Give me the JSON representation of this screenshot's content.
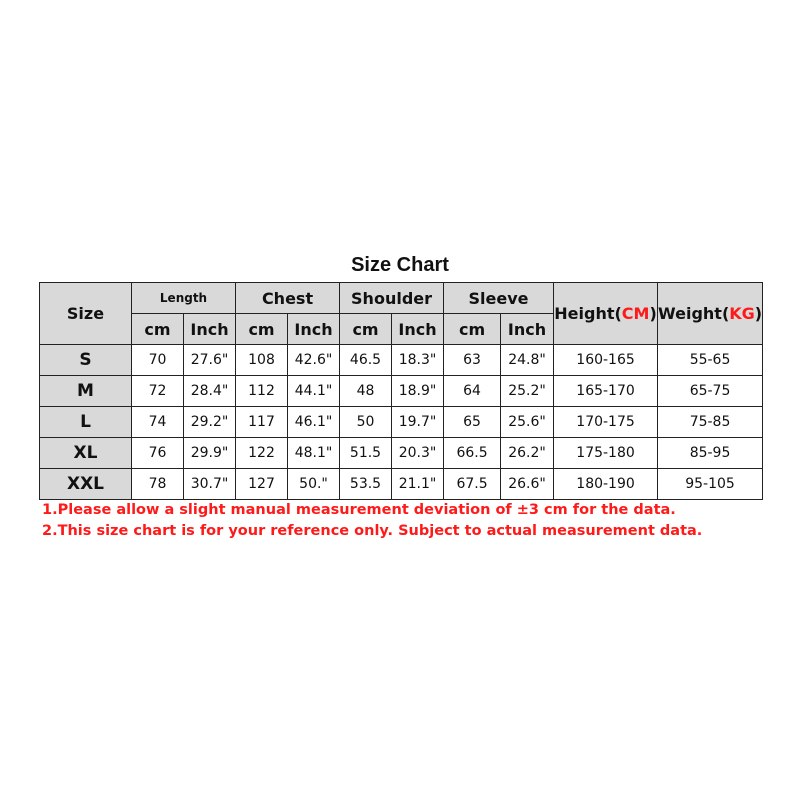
{
  "title": "Size Chart",
  "header": {
    "size": "Size",
    "length": "Length",
    "chest": "Chest",
    "shoulder": "Shoulder",
    "sleeve": "Sleeve",
    "height": "Height(",
    "height_unit": "CM",
    "weight": "Weight(",
    "weight_unit": "KG",
    "close_paren": ")",
    "cm": "cm",
    "inch": "Inch"
  },
  "rows": [
    {
      "size": "S",
      "length_cm": "70",
      "length_in": "27.6\"",
      "chest_cm": "108",
      "chest_in": "42.6\"",
      "shoulder_cm": "46.5",
      "shoulder_in": "18.3\"",
      "sleeve_cm": "63",
      "sleeve_in": "24.8\"",
      "height": "160-165",
      "weight": "55-65"
    },
    {
      "size": "M",
      "length_cm": "72",
      "length_in": "28.4\"",
      "chest_cm": "112",
      "chest_in": "44.1\"",
      "shoulder_cm": "48",
      "shoulder_in": "18.9\"",
      "sleeve_cm": "64",
      "sleeve_in": "25.2\"",
      "height": "165-170",
      "weight": "65-75"
    },
    {
      "size": "L",
      "length_cm": "74",
      "length_in": "29.2\"",
      "chest_cm": "117",
      "chest_in": "46.1\"",
      "shoulder_cm": "50",
      "shoulder_in": "19.7\"",
      "sleeve_cm": "65",
      "sleeve_in": "25.6\"",
      "height": "170-175",
      "weight": "75-85"
    },
    {
      "size": "XL",
      "length_cm": "76",
      "length_in": "29.9\"",
      "chest_cm": "122",
      "chest_in": "48.1\"",
      "shoulder_cm": "51.5",
      "shoulder_in": "20.3\"",
      "sleeve_cm": "66.5",
      "sleeve_in": "26.2\"",
      "height": "175-180",
      "weight": "85-95"
    },
    {
      "size": "XXL",
      "length_cm": "78",
      "length_in": "30.7\"",
      "chest_cm": "127",
      "chest_in": "50.\"",
      "shoulder_cm": "53.5",
      "shoulder_in": "21.1\"",
      "sleeve_cm": "67.5",
      "sleeve_in": "26.6\"",
      "height": "180-190",
      "weight": "95-105"
    }
  ],
  "notes": [
    "1.Please allow a slight manual measurement deviation of ±3 cm for the data.",
    "2.This size chart is for your reference only. Subject to actual measurement data."
  ],
  "colors": {
    "header_bg": "#d9d9d9",
    "accent_red": "#ff1a1a"
  }
}
